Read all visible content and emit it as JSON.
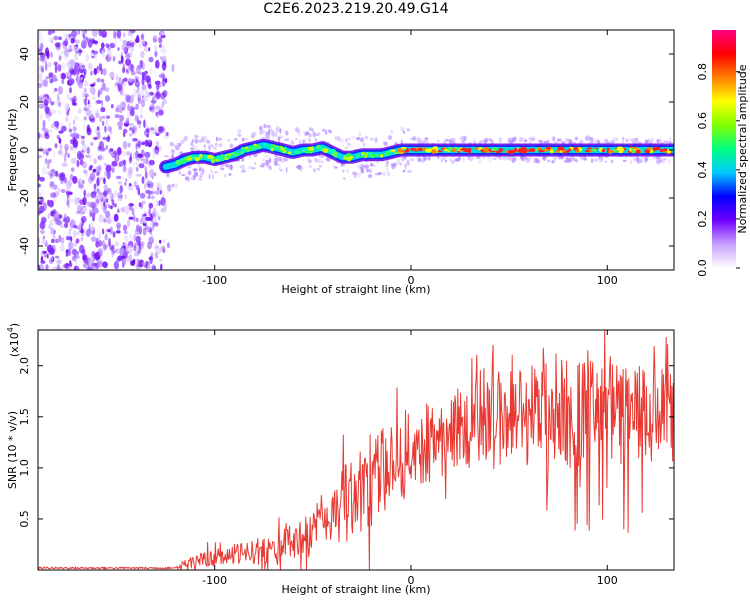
{
  "title": "C2E6.2023.219.20.49.G14",
  "chart_data": [
    {
      "type": "heatmap",
      "xlabel": "Height of straight line (km)",
      "ylabel": "Frequency (Hz)",
      "xlim": [
        -190,
        134
      ],
      "ylim": [
        -50,
        50
      ],
      "xticks": [
        -100,
        0,
        100
      ],
      "yticks": [
        -40,
        -20,
        0,
        20,
        40
      ],
      "grid": false,
      "noise_region_x": [
        -190,
        -125
      ],
      "doppler_trace": [
        {
          "x": -125,
          "y": -7
        },
        {
          "x": -120,
          "y": -6
        },
        {
          "x": -115,
          "y": -4
        },
        {
          "x": -110,
          "y": -3
        },
        {
          "x": -105,
          "y": -3
        },
        {
          "x": -100,
          "y": -4
        },
        {
          "x": -95,
          "y": -3
        },
        {
          "x": -90,
          "y": -2
        },
        {
          "x": -85,
          "y": 0
        },
        {
          "x": -80,
          "y": 1
        },
        {
          "x": -75,
          "y": 2
        },
        {
          "x": -70,
          "y": 1
        },
        {
          "x": -65,
          "y": 0
        },
        {
          "x": -60,
          "y": -1
        },
        {
          "x": -55,
          "y": 0
        },
        {
          "x": -50,
          "y": 0
        },
        {
          "x": -45,
          "y": 1
        },
        {
          "x": -40,
          "y": -1
        },
        {
          "x": -35,
          "y": -3
        },
        {
          "x": -30,
          "y": -3
        },
        {
          "x": -25,
          "y": -2
        },
        {
          "x": -20,
          "y": -2
        },
        {
          "x": -15,
          "y": -2
        },
        {
          "x": -10,
          "y": -1
        },
        {
          "x": -5,
          "y": 0
        },
        {
          "x": 0,
          "y": 0
        },
        {
          "x": 10,
          "y": 0
        },
        {
          "x": 20,
          "y": 0
        },
        {
          "x": 40,
          "y": 0
        },
        {
          "x": 60,
          "y": 0
        },
        {
          "x": 80,
          "y": 0
        },
        {
          "x": 100,
          "y": 0
        },
        {
          "x": 120,
          "y": 0
        },
        {
          "x": 134,
          "y": 0
        }
      ],
      "colorbar": {
        "label": "Normalized spectral amplitude",
        "range": [
          0,
          0.97
        ],
        "ticks": [
          "0.0",
          "0.2",
          "0.4",
          "0.6",
          "0.8"
        ],
        "colors": [
          "#ffffff",
          "#c8a0ff",
          "#7000ff",
          "#0000ff",
          "#00c8ff",
          "#00ff80",
          "#80ff00",
          "#ffff00",
          "#ff8000",
          "#ff0000",
          "#ff0080"
        ]
      }
    },
    {
      "type": "line",
      "xlabel": "Height of straight line (km)",
      "ylabel": "SNR (10 * v/v)",
      "yscale_label": "(x10",
      "yscale_exponent": "4",
      "yscale_suffix": ")",
      "xlim": [
        -190,
        134
      ],
      "ylim": [
        0,
        2.35
      ],
      "xticks": [
        -100,
        0,
        100
      ],
      "yticks": [
        "0.5",
        "1.0",
        "1.5",
        "2.0"
      ],
      "grid": false,
      "color": "#e83a33",
      "envelope": [
        {
          "x": -190,
          "low": 0.0,
          "high": 0.03
        },
        {
          "x": -120,
          "low": 0.0,
          "high": 0.05
        },
        {
          "x": -110,
          "low": 0.02,
          "high": 0.15
        },
        {
          "x": -100,
          "low": 0.03,
          "high": 0.2
        },
        {
          "x": -90,
          "low": 0.04,
          "high": 0.25
        },
        {
          "x": -80,
          "low": 0.05,
          "high": 0.3
        },
        {
          "x": -70,
          "low": 0.06,
          "high": 0.35
        },
        {
          "x": -60,
          "low": 0.08,
          "high": 0.45
        },
        {
          "x": -50,
          "low": 0.12,
          "high": 0.6
        },
        {
          "x": -40,
          "low": 0.2,
          "high": 0.9
        },
        {
          "x": -30,
          "low": 0.3,
          "high": 1.1
        },
        {
          "x": -20,
          "low": 0.45,
          "high": 1.3
        },
        {
          "x": -10,
          "low": 0.6,
          "high": 1.45
        },
        {
          "x": 0,
          "low": 0.75,
          "high": 1.55
        },
        {
          "x": 10,
          "low": 0.85,
          "high": 1.65
        },
        {
          "x": 20,
          "low": 0.95,
          "high": 1.75
        },
        {
          "x": 30,
          "low": 1.0,
          "high": 1.85
        },
        {
          "x": 40,
          "low": 1.0,
          "high": 1.95
        },
        {
          "x": 60,
          "low": 1.0,
          "high": 2.05
        },
        {
          "x": 80,
          "low": 0.95,
          "high": 2.1
        },
        {
          "x": 100,
          "low": 0.95,
          "high": 2.05
        },
        {
          "x": 120,
          "low": 0.95,
          "high": 2.0
        },
        {
          "x": 134,
          "low": 0.95,
          "high": 1.95
        }
      ]
    }
  ]
}
